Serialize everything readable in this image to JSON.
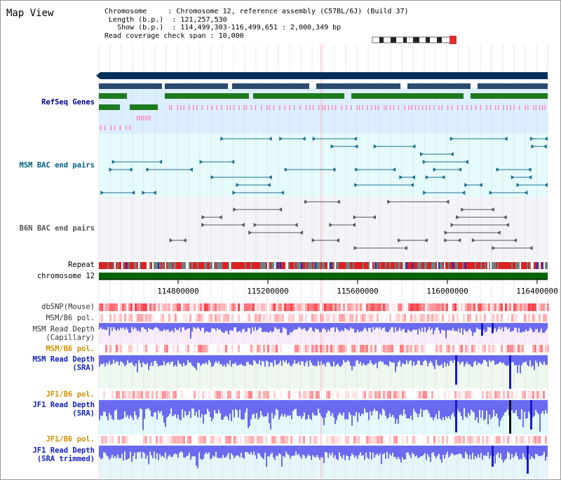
{
  "app": {
    "title": "Map View"
  },
  "info": {
    "chromosome_key": "Chromosome",
    "chromosome_val": "Chromosome 12, reference assembly (C57BL/6J) (Build 37)",
    "length_key": "Length (b.p.)",
    "length_val": "121,257,530",
    "show_key": "Show (b.p.)",
    "show_val": "114,499,303-116,499,651 : 2,000,349 bp",
    "span_key": "Read coverage check span",
    "span_val": "10,000"
  },
  "tracks": {
    "refseq": "RefSeq Genes",
    "msm_bac": "MSM BAC end pairs",
    "b6n_bac": "B6N BAC end pairs",
    "repeat": "Repeat",
    "chromosome": "chromosome 12",
    "dbsnp": "dbSNP(Mouse)",
    "msm_b6_pol_1": "MSM/B6 pol.",
    "msm_depth_cap_1": "MSM Read Depth",
    "msm_depth_cap_2": "(Capillary)",
    "msm_b6_pol_2": "MSM/B6 pol.",
    "msm_depth_sra_1": "MSM Read Depth",
    "msm_depth_sra_2": "(SRA)",
    "jf1_b6_pol_1": "JF1/B6 pol.",
    "jf1_depth_sra_1": "JF1 Read Depth",
    "jf1_depth_sra_2": "(SRA)",
    "jf1_b6_pol_2": "JF1/B6 pol.",
    "jf1_depth_trim_1": "JF1 Read Depth",
    "jf1_depth_trim_2": "(SRA trimmed)"
  },
  "axis": {
    "ticks": [
      "114800000",
      "115200000",
      "115600000",
      "116000000",
      "116400000"
    ]
  },
  "colors": {
    "navy": "#00305a",
    "green": "#006400",
    "blue": "#3333ee",
    "red": "#e00000",
    "pink": "#ff88bb"
  }
}
